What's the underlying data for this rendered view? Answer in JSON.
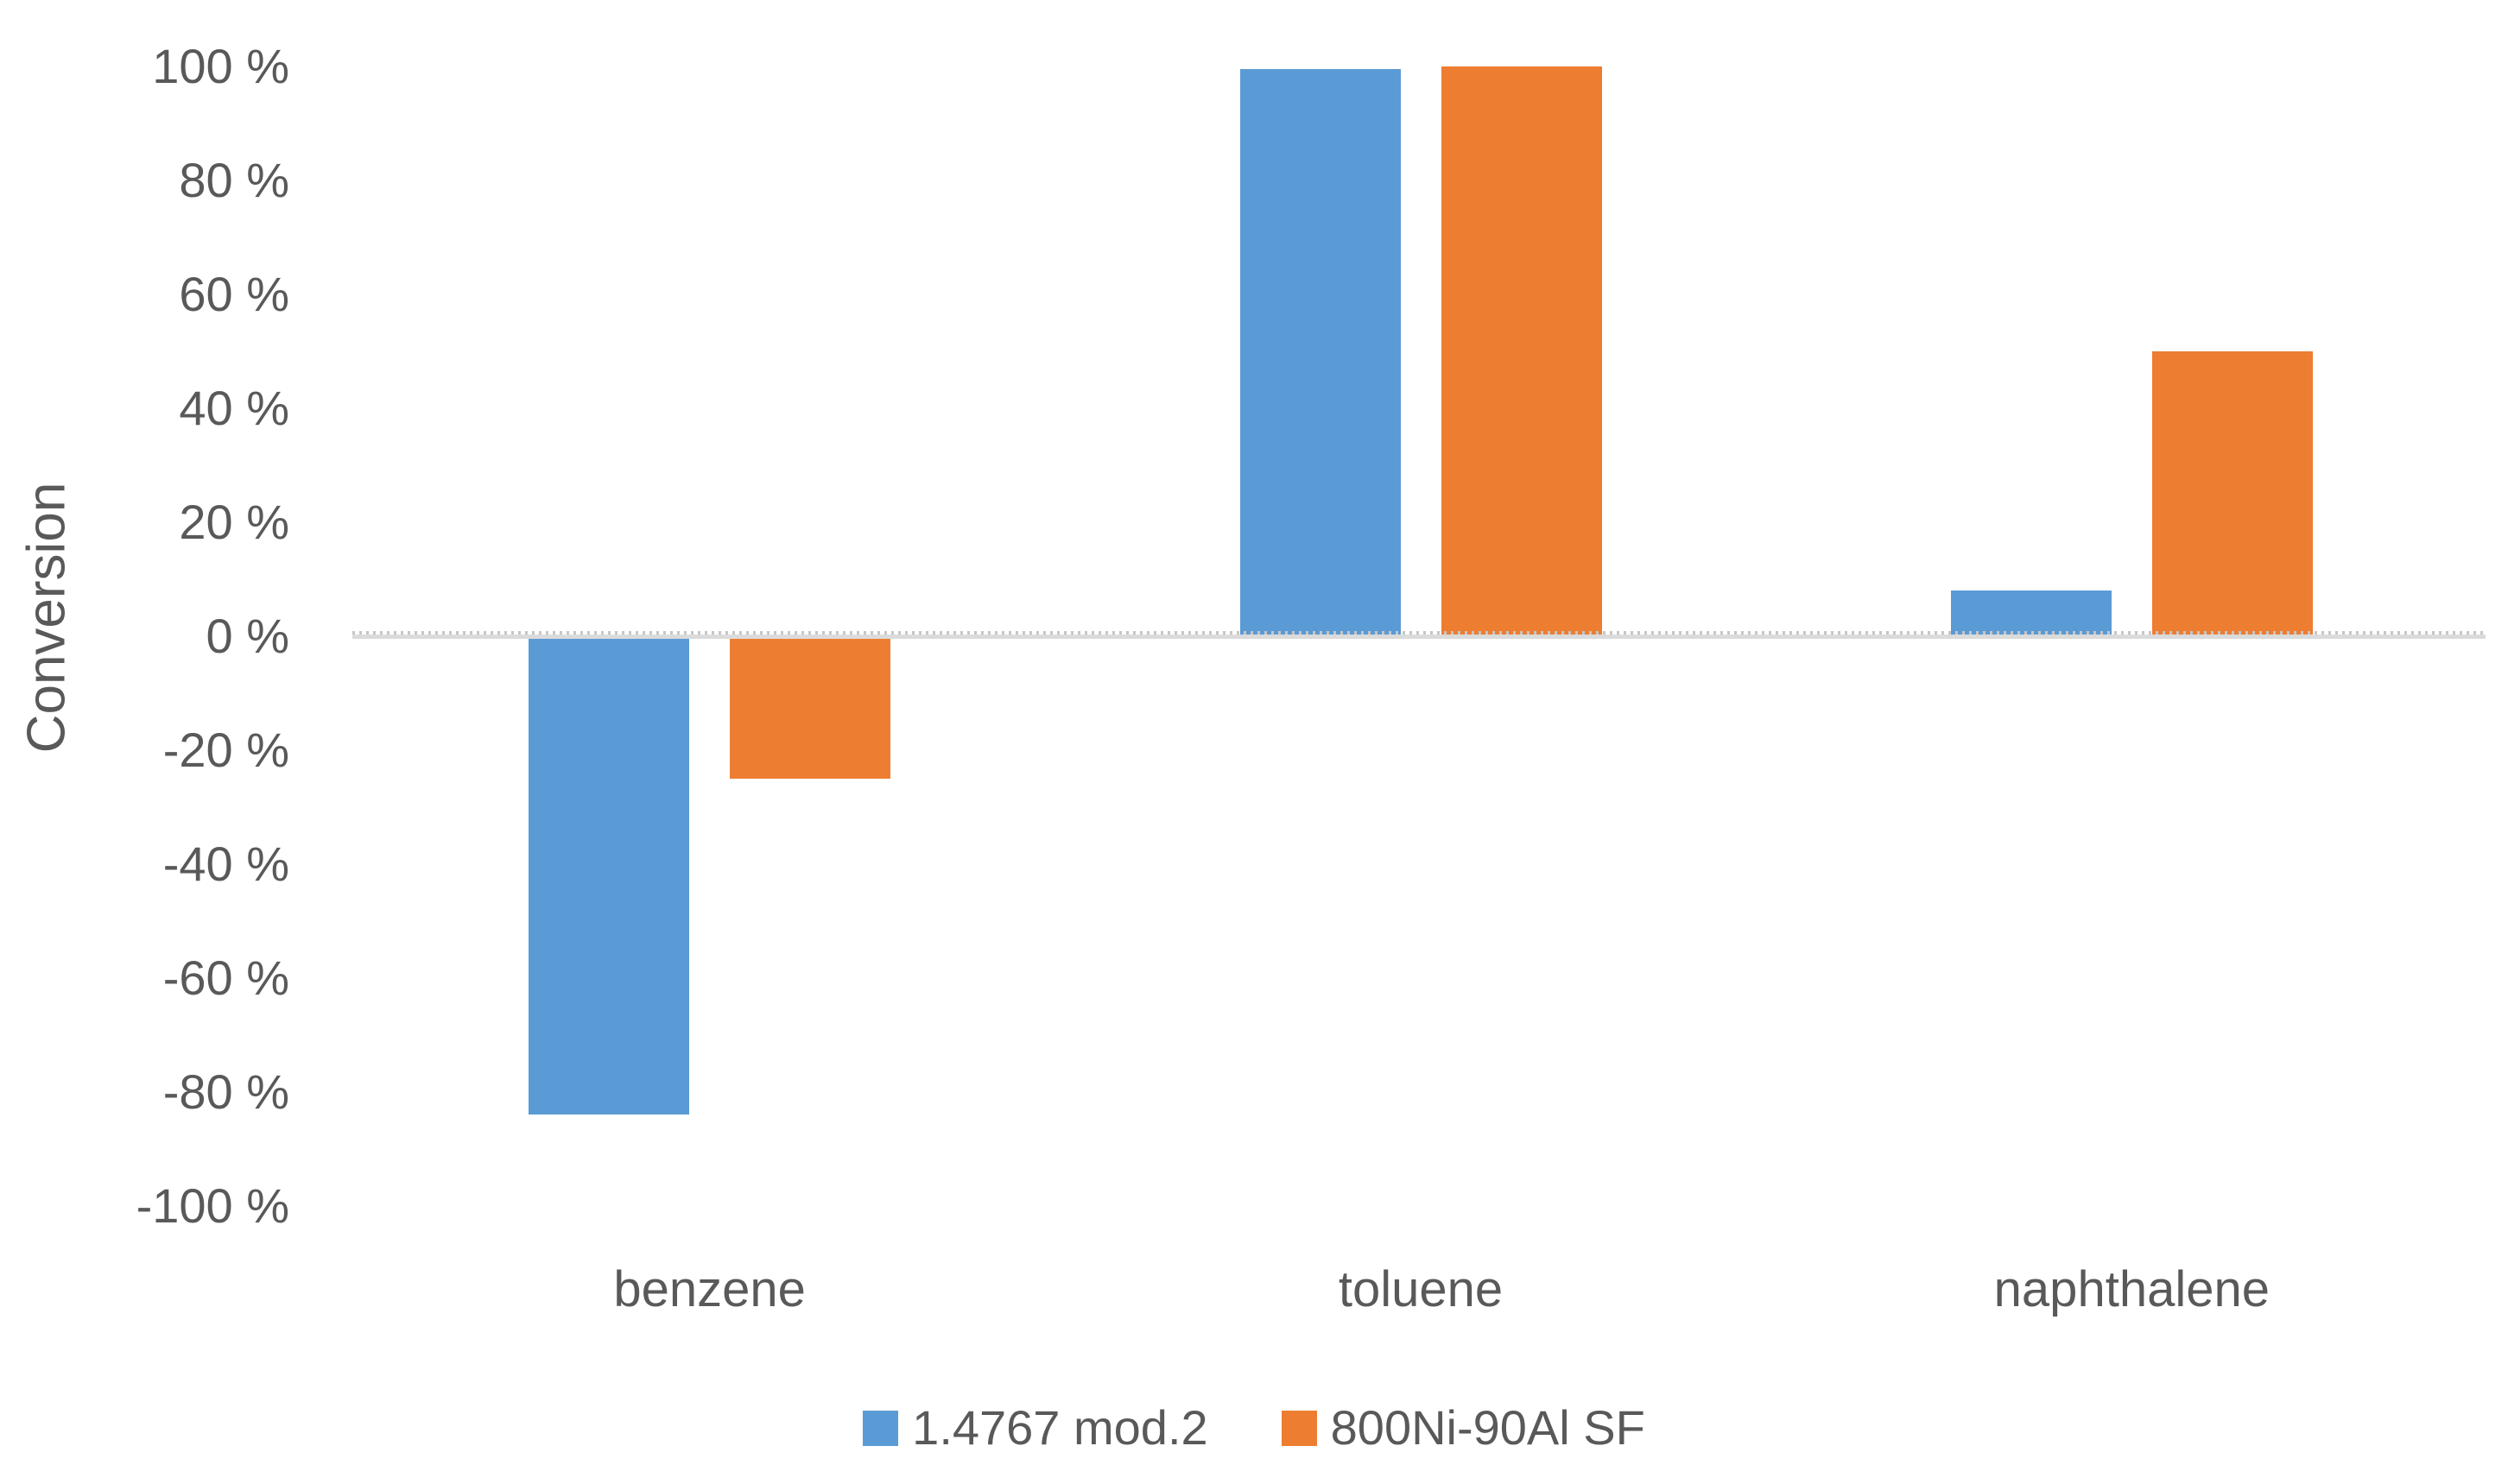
{
  "chart_data": {
    "type": "bar",
    "title": "",
    "xlabel": "",
    "ylabel": "Conversion",
    "categories": [
      "benzene",
      "toluene",
      "naphthalene"
    ],
    "series": [
      {
        "name": "1.4767 mod.2",
        "color": "#5B9BD5",
        "values": [
          -84,
          99.5,
          8
        ]
      },
      {
        "name": "800Ni-90Al SF",
        "color": "#ED7D31",
        "values": [
          -25,
          100,
          50
        ]
      }
    ],
    "ylim": [
      -100,
      100
    ],
    "ytick_step": 20,
    "yticks": [
      {
        "value": 100,
        "label": "100 %"
      },
      {
        "value": 80,
        "label": "80 %"
      },
      {
        "value": 60,
        "label": "60 %"
      },
      {
        "value": 40,
        "label": "40 %"
      },
      {
        "value": 20,
        "label": "20 %"
      },
      {
        "value": 0,
        "label": "0 %"
      },
      {
        "value": -20,
        "label": "-20 %"
      },
      {
        "value": -40,
        "label": "-40 %"
      },
      {
        "value": -60,
        "label": "-60 %"
      },
      {
        "value": -80,
        "label": "-80 %"
      },
      {
        "value": -100,
        "label": "-100 %"
      }
    ],
    "legend_position": "bottom",
    "grid": false,
    "colors": {
      "background": "#FFFFFF",
      "text": "#595959",
      "axis_line": "#DBDBDB",
      "series1": "#5B9BD5",
      "series2": "#ED7D31"
    }
  }
}
